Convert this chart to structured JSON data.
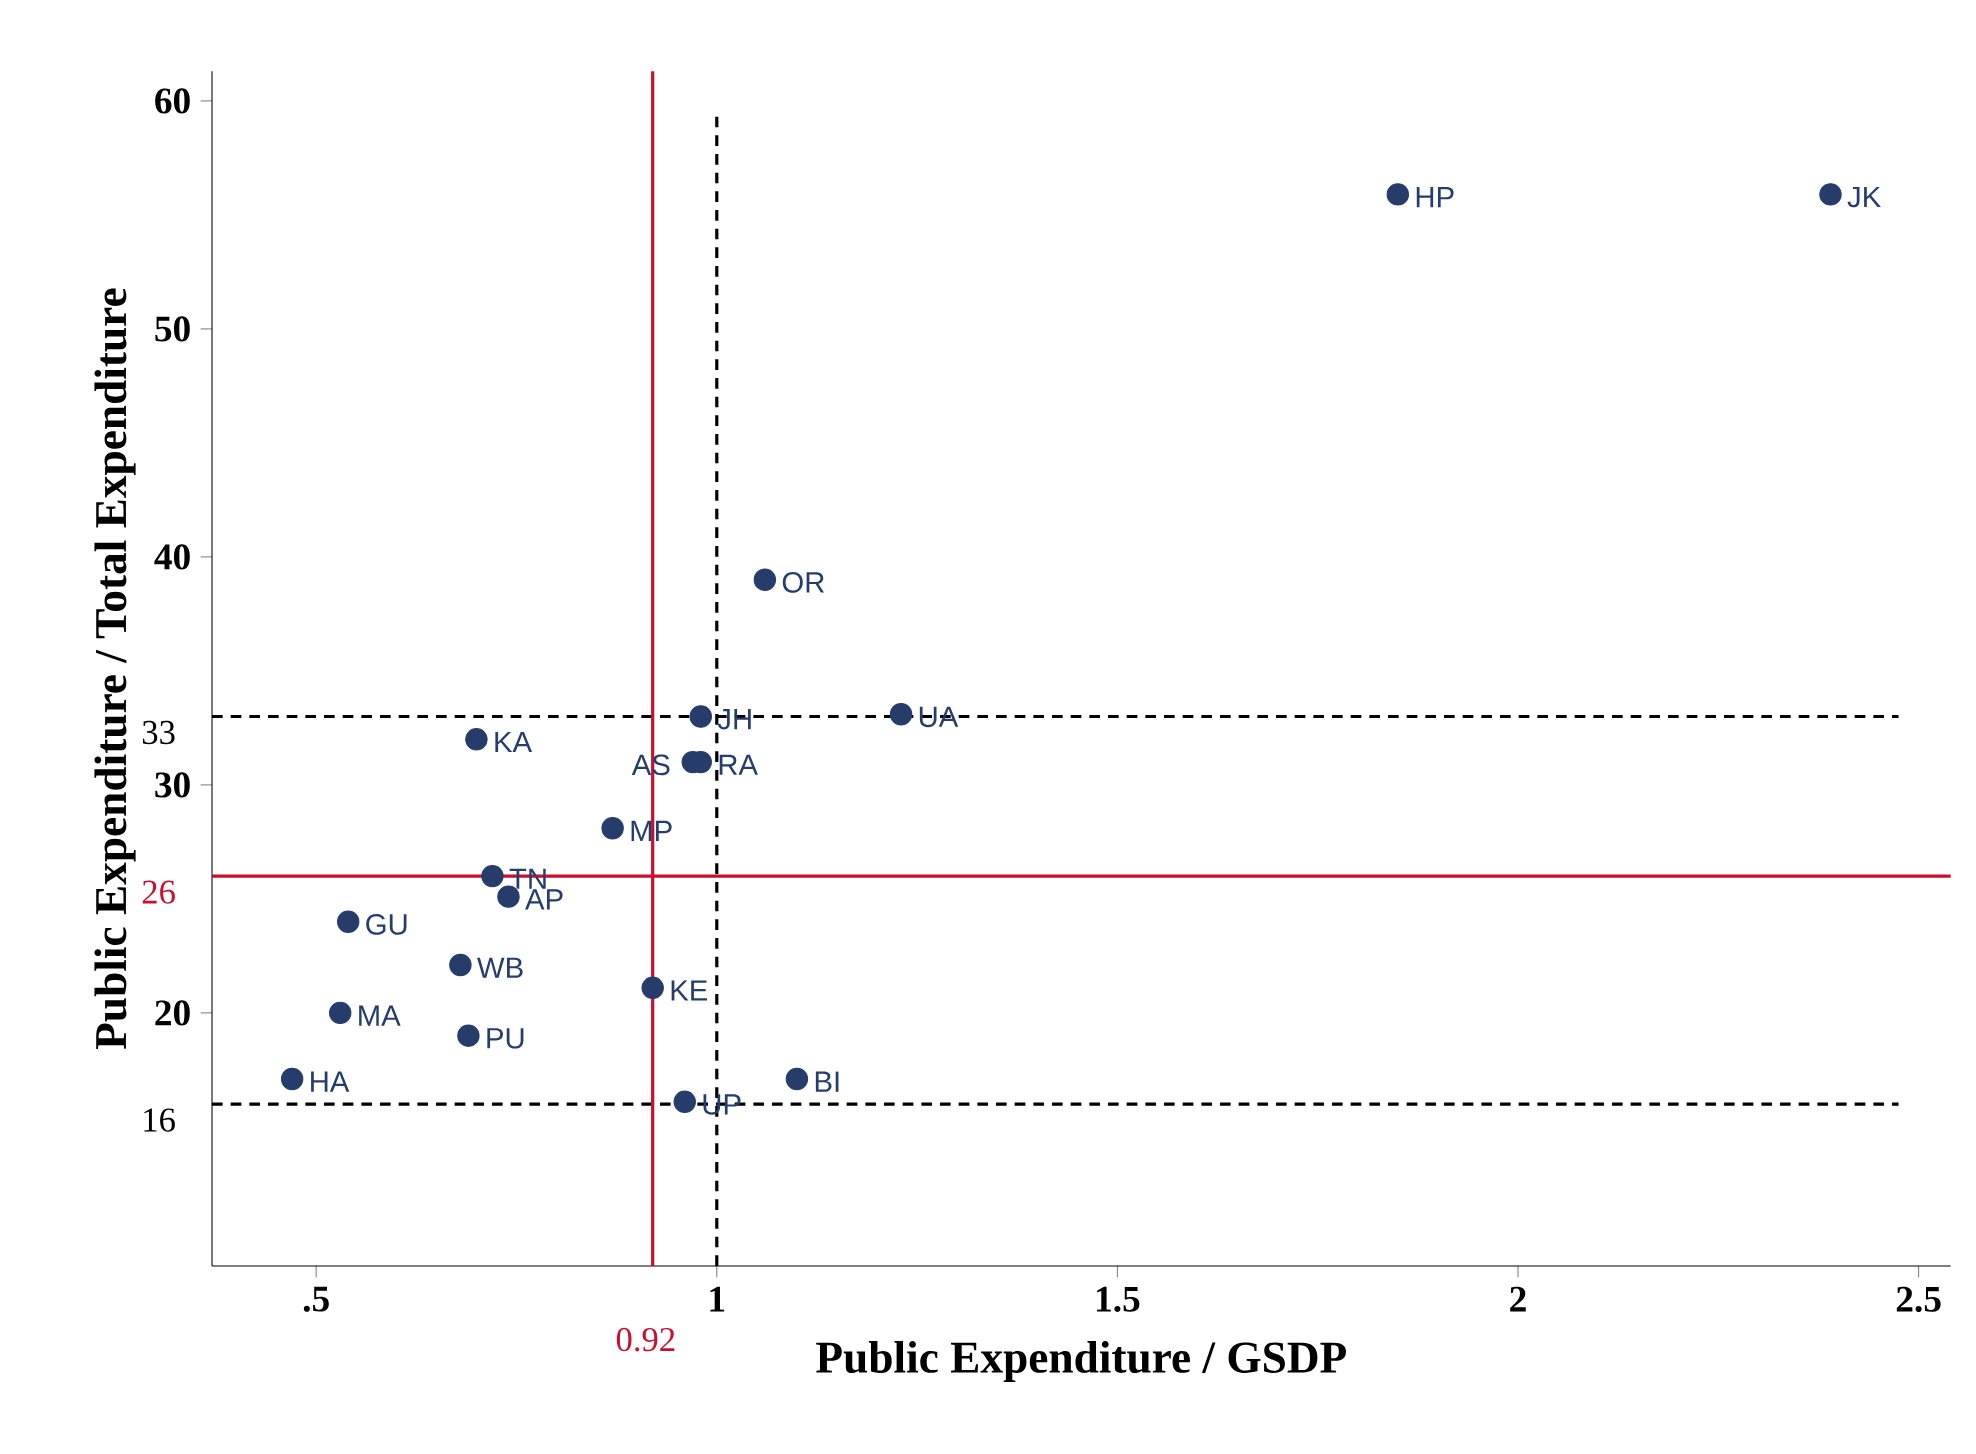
{
  "chart_data": {
    "type": "scatter",
    "xlabel": "Public Expenditure / GSDP",
    "ylabel": "Public Expenditure / Total Expenditure",
    "series": [
      {
        "color": "#263d6b",
        "x": [
          1.85,
          2.39,
          1.06,
          0.98,
          1.23,
          0.97,
          0.98,
          0.7,
          0.87,
          0.72,
          0.74,
          0.54,
          0.68,
          0.92,
          0.53,
          0.69,
          0.47,
          1.1,
          0.96
        ],
        "values": [
          55.9,
          55.9,
          39.0,
          33.0,
          33.1,
          31.0,
          31.0,
          32.0,
          28.1,
          26.0,
          25.1,
          24.0,
          22.1,
          21.1,
          20.0,
          19.0,
          17.1,
          17.1,
          16.1
        ],
        "value_labels": [
          "HP",
          "JK",
          "OR",
          "JH",
          "UA",
          "AS",
          "RA",
          "KA",
          "MP",
          "TN",
          "AP",
          "GU",
          "WB",
          "KE",
          "MA",
          "PU",
          "HA",
          "BI",
          "UP"
        ]
      }
    ],
    "marker": "circle",
    "xlim": [
      0.37,
      2.54
    ],
    "ylim": [
      8.9,
      61.3
    ],
    "xticks": [
      {
        "value": 0.5,
        "label": ".5"
      },
      1,
      1.5,
      2,
      2.5
    ],
    "yticks": [
      20,
      30,
      40,
      50,
      60
    ],
    "ref_lines": [
      {
        "axis": "y",
        "value": 33,
        "label": "33",
        "color": "#000000",
        "line_style": "dashed"
      },
      {
        "axis": "y",
        "value": 26,
        "label": "26",
        "color": "#c8102e",
        "line_style": "solid"
      },
      {
        "axis": "y",
        "value": 16,
        "label": "16",
        "color": "#000000",
        "line_style": "dashed"
      },
      {
        "axis": "x",
        "value": 0.92,
        "label": "0.92",
        "color": "#c8102e",
        "line_style": "solid"
      },
      {
        "axis": "x",
        "value": 1,
        "label": null,
        "color": "#000000",
        "line_style": "dashed"
      }
    ],
    "grid": false
  }
}
